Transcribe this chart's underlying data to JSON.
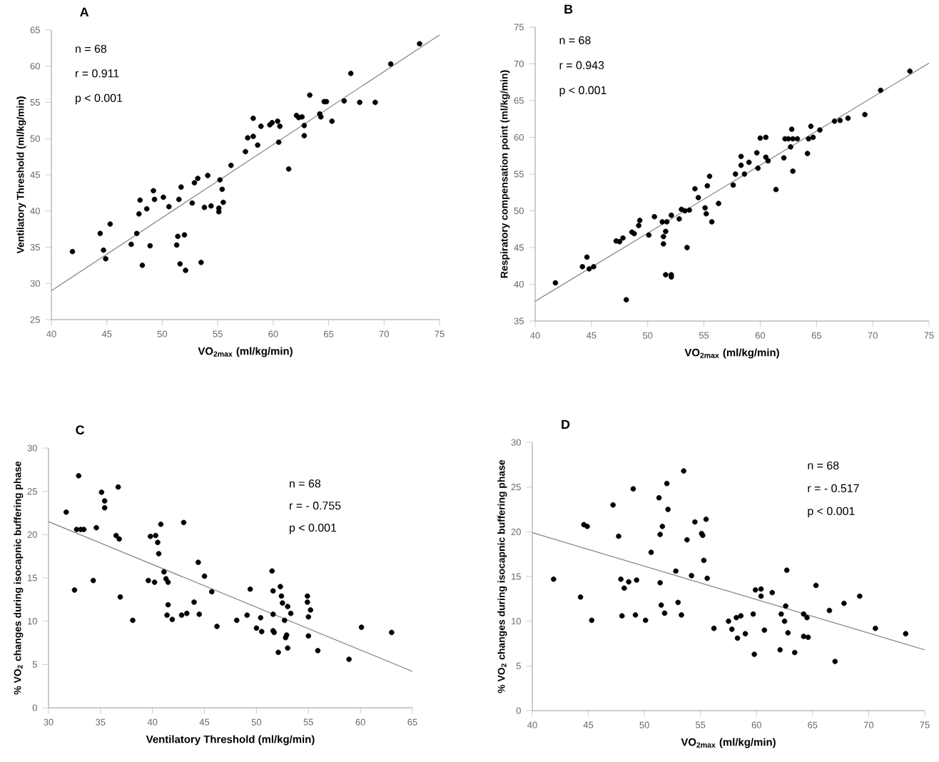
{
  "chart_data": [
    {
      "type": "scatter",
      "title": "A",
      "xlabel": "VO$_{2max}$ (ml/kg/min)",
      "ylabel": "Ventilatory Threshold (ml/kg/min)",
      "xlim": [
        40,
        75
      ],
      "ylim": [
        25,
        65
      ],
      "xticks": [
        40,
        45,
        50,
        55,
        60,
        65,
        70,
        75
      ],
      "yticks": [
        25,
        30,
        35,
        40,
        45,
        50,
        55,
        60,
        65
      ],
      "annotations": [
        "n = 68",
        "r = 0.911",
        "p < 0.001"
      ],
      "series": [
        {
          "color": "#000000",
          "x": [
            41.9,
            44.4,
            44.7,
            44.9,
            45.3,
            47.2,
            47.7,
            47.9,
            48.0,
            48.2,
            48.6,
            48.9,
            49.2,
            49.3,
            50.1,
            50.6,
            51.3,
            51.5,
            51.4,
            51.6,
            51.7,
            52.0,
            52.1,
            52.7,
            52.9,
            53.2,
            53.5,
            53.8,
            54.1,
            54.4,
            55.1,
            55.1,
            55.2,
            55.4,
            55.5,
            56.2,
            57.5,
            57.7,
            58.2,
            58.2,
            58.6,
            58.9,
            59.7,
            59.9,
            60.4,
            60.6,
            60.5,
            61.4,
            62.1,
            62.3,
            62.6,
            62.8,
            62.8,
            63.3,
            64.2,
            64.3,
            64.6,
            64.8,
            65.3,
            66.4,
            67.0,
            67.8,
            69.2,
            70.6,
            73.2
          ],
          "values": [
            34.4,
            36.9,
            34.6,
            33.4,
            38.2,
            35.4,
            36.9,
            39.6,
            41.5,
            32.5,
            40.3,
            35.2,
            42.8,
            41.6,
            41.9,
            40.6,
            35.3,
            41.6,
            36.5,
            32.7,
            43.3,
            36.7,
            31.8,
            41.1,
            43.9,
            44.5,
            32.9,
            40.5,
            44.9,
            40.7,
            40.4,
            39.9,
            44.3,
            43.0,
            41.2,
            46.3,
            48.2,
            50.1,
            50.3,
            52.8,
            49.1,
            51.7,
            51.9,
            52.2,
            52.4,
            51.7,
            49.5,
            45.8,
            53.2,
            52.9,
            53.0,
            51.8,
            50.4,
            56.0,
            53.4,
            53.0,
            55.1,
            55.1,
            52.4,
            55.2,
            59.0,
            55.0,
            55.0,
            60.3,
            63.1
          ]
        },
        {
          "type": "line",
          "color": "#808080",
          "x": [
            40,
            75
          ],
          "values": [
            29.0,
            64.3
          ]
        }
      ]
    },
    {
      "type": "scatter",
      "title": "B",
      "xlabel": "VO$_{2max}$ (ml/kg/min)",
      "ylabel": "Respiratory compensation point (ml/kg/min)",
      "xlim": [
        40,
        75
      ],
      "ylim": [
        35,
        75
      ],
      "xticks": [
        40,
        45,
        50,
        55,
        60,
        65,
        70,
        75
      ],
      "yticks": [
        35,
        40,
        45,
        50,
        55,
        60,
        65,
        70,
        75
      ],
      "annotations": [
        "n = 68",
        "r = 0.943",
        "p < 0.001"
      ],
      "series": [
        {
          "color": "#000000",
          "x": [
            41.8,
            44.2,
            44.6,
            44.8,
            45.2,
            47.2,
            47.5,
            47.8,
            48.1,
            48.6,
            48.8,
            49.2,
            49.3,
            50.1,
            50.6,
            51.3,
            51.4,
            51.4,
            51.6,
            51.6,
            51.7,
            52.1,
            52.1,
            52.1,
            52.8,
            53.0,
            53.3,
            53.5,
            53.7,
            54.2,
            54.5,
            55.1,
            55.2,
            55.3,
            55.5,
            55.7,
            56.3,
            57.6,
            57.8,
            58.3,
            58.3,
            58.6,
            59.0,
            59.7,
            59.8,
            60.0,
            60.5,
            60.5,
            60.7,
            61.4,
            62.1,
            62.2,
            62.5,
            62.7,
            62.9,
            62.8,
            62.9,
            63.3,
            64.2,
            64.3,
            64.5,
            64.7,
            65.3,
            66.6,
            67.1,
            67.8,
            69.3,
            70.7,
            73.3
          ],
          "values": [
            40.2,
            42.4,
            43.7,
            42.1,
            42.4,
            45.9,
            45.8,
            46.3,
            37.9,
            47.1,
            46.9,
            48.0,
            48.7,
            46.7,
            49.2,
            48.5,
            46.5,
            45.5,
            47.2,
            41.3,
            48.5,
            41.3,
            41.0,
            49.4,
            48.9,
            50.2,
            50.0,
            45.0,
            50.1,
            53.0,
            51.8,
            50.4,
            49.6,
            53.4,
            54.7,
            48.5,
            51.0,
            53.5,
            55.0,
            57.4,
            56.2,
            55.0,
            56.6,
            57.9,
            55.8,
            59.9,
            60.0,
            57.3,
            56.8,
            52.9,
            57.2,
            59.8,
            59.8,
            58.7,
            59.8,
            61.1,
            55.4,
            59.8,
            57.8,
            59.8,
            61.5,
            60.0,
            61.0,
            62.2,
            62.3,
            62.6,
            63.1,
            66.4,
            69.0
          ]
        },
        {
          "type": "line",
          "color": "#808080",
          "x": [
            40,
            75
          ],
          "values": [
            37.7,
            70.1
          ]
        }
      ]
    },
    {
      "type": "scatter",
      "title": "C",
      "xlabel": "Ventilatory Threshold (ml/kg/min)",
      "ylabel": "% VO$_{2}$ changes during isocapnic buffering phase",
      "xlim": [
        30,
        65
      ],
      "ylim": [
        0,
        30
      ],
      "xticks": [
        30,
        35,
        40,
        45,
        50,
        55,
        60,
        65
      ],
      "yticks": [
        0,
        5,
        10,
        15,
        20,
        25,
        30
      ],
      "annotations": [
        "n = 68",
        "r = - 0.755",
        "p < 0.001"
      ],
      "series": [
        {
          "color": "#000000",
          "x": [
            31.7,
            32.5,
            32.7,
            32.9,
            33.1,
            33.4,
            34.3,
            34.6,
            35.1,
            35.4,
            35.4,
            36.5,
            36.7,
            36.8,
            36.9,
            38.1,
            39.6,
            39.8,
            40.2,
            40.3,
            40.5,
            40.6,
            40.8,
            41.1,
            41.3,
            41.5,
            41.4,
            41.5,
            41.9,
            42.8,
            43.0,
            43.3,
            44.0,
            44.4,
            44.5,
            45.0,
            45.7,
            46.2,
            48.1,
            49.1,
            49.4,
            50.0,
            50.4,
            50.5,
            51.5,
            51.6,
            51.6,
            51.6,
            51.7,
            52.1,
            52.3,
            52.4,
            52.5,
            52.7,
            52.8,
            52.9,
            53.0,
            53.0,
            53.3,
            54.9,
            54.9,
            55.0,
            55.0,
            55.2,
            55.9,
            58.9,
            60.1,
            63.0
          ],
          "values": [
            22.6,
            13.6,
            20.6,
            26.8,
            20.6,
            20.6,
            14.7,
            20.8,
            24.9,
            23.9,
            23.1,
            19.9,
            25.5,
            19.5,
            12.8,
            10.1,
            14.7,
            19.8,
            14.5,
            19.9,
            19.1,
            17.8,
            21.2,
            15.7,
            14.9,
            14.5,
            10.7,
            11.9,
            10.2,
            10.7,
            21.4,
            10.9,
            12.2,
            16.8,
            10.8,
            15.2,
            13.4,
            9.4,
            10.1,
            10.7,
            13.7,
            9.2,
            10.4,
            8.8,
            15.8,
            13.5,
            10.8,
            8.9,
            8.7,
            6.4,
            14.0,
            12.9,
            12.1,
            10.1,
            8.1,
            8.4,
            11.7,
            6.9,
            10.9,
            12.9,
            12.2,
            10.5,
            8.3,
            11.3,
            6.6,
            5.6,
            9.3,
            8.7
          ]
        },
        {
          "type": "line",
          "color": "#808080",
          "x": [
            30,
            65
          ],
          "values": [
            21.5,
            4.2
          ]
        }
      ]
    },
    {
      "type": "scatter",
      "title": "D",
      "xlabel": "VO$_{2max}$ (ml/kg/min)",
      "ylabel": "% VO$_{2}$ changes during isocapnic buffering phase",
      "xlim": [
        40,
        75
      ],
      "ylim": [
        0,
        30
      ],
      "xticks": [
        40,
        45,
        50,
        55,
        60,
        65,
        70,
        75
      ],
      "yticks": [
        0,
        5,
        10,
        15,
        20,
        25,
        30
      ],
      "annotations": [
        "n = 68",
        "r = - 0.517",
        "p < 0.001"
      ],
      "series": [
        {
          "color": "#000000",
          "x": [
            41.9,
            44.3,
            44.6,
            44.9,
            45.3,
            47.2,
            47.7,
            47.9,
            48.0,
            48.2,
            48.6,
            49.0,
            49.2,
            49.3,
            50.1,
            50.6,
            51.3,
            51.4,
            51.4,
            51.5,
            51.6,
            51.8,
            52.0,
            52.1,
            52.8,
            53.0,
            53.3,
            53.5,
            53.8,
            54.2,
            54.5,
            55.1,
            55.2,
            55.3,
            55.5,
            55.6,
            56.2,
            57.5,
            57.8,
            58.2,
            58.3,
            58.6,
            59.0,
            59.7,
            59.8,
            59.9,
            60.4,
            60.4,
            60.7,
            61.4,
            62.1,
            62.2,
            62.5,
            62.7,
            62.6,
            62.8,
            63.4,
            64.2,
            64.2,
            64.5,
            64.6,
            65.3,
            66.5,
            67.0,
            67.8,
            69.2,
            70.6,
            73.3
          ],
          "values": [
            14.7,
            12.7,
            20.8,
            20.6,
            10.1,
            23.0,
            19.5,
            14.7,
            10.6,
            13.7,
            14.4,
            24.8,
            10.7,
            14.6,
            10.1,
            17.7,
            23.8,
            19.7,
            14.3,
            11.8,
            20.6,
            10.9,
            25.4,
            22.5,
            15.6,
            12.1,
            10.7,
            26.8,
            19.1,
            15.1,
            21.1,
            19.8,
            19.6,
            16.8,
            21.4,
            14.8,
            9.2,
            10.0,
            9.1,
            10.4,
            8.1,
            10.6,
            8.6,
            10.8,
            6.3,
            13.5,
            13.6,
            12.8,
            9.0,
            13.2,
            6.8,
            10.8,
            10.0,
            15.7,
            11.7,
            8.7,
            6.5,
            10.8,
            8.3,
            10.4,
            8.2,
            14.0,
            11.2,
            5.5,
            12.0,
            12.8,
            9.2,
            8.6
          ]
        },
        {
          "type": "line",
          "color": "#808080",
          "x": [
            40,
            75
          ],
          "values": [
            19.9,
            6.8
          ]
        }
      ]
    }
  ]
}
